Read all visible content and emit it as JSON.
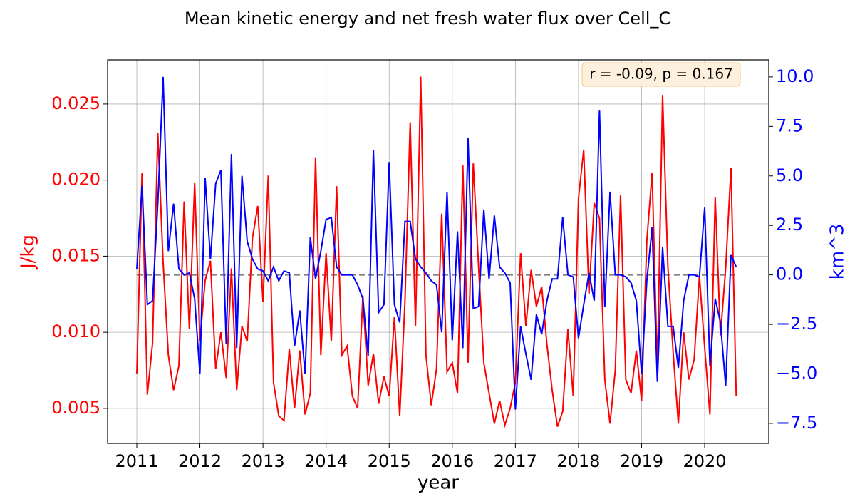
{
  "chart_data": {
    "type": "line",
    "title": "Mean kinetic energy and net fresh water flux over Cell_C",
    "xlabel": "year",
    "ylabel": "J/kg",
    "y2label": "km^3",
    "annotation": "r = -0.09, p = 0.167",
    "x": [
      2011,
      2011.083,
      2011.167,
      2011.25,
      2011.333,
      2011.417,
      2011.5,
      2011.583,
      2011.667,
      2011.75,
      2011.833,
      2011.917,
      2012,
      2012.083,
      2012.167,
      2012.25,
      2012.333,
      2012.417,
      2012.5,
      2012.583,
      2012.667,
      2012.75,
      2012.833,
      2012.917,
      2013,
      2013.083,
      2013.167,
      2013.25,
      2013.333,
      2013.417,
      2013.5,
      2013.583,
      2013.667,
      2013.75,
      2013.833,
      2013.917,
      2014,
      2014.083,
      2014.167,
      2014.25,
      2014.333,
      2014.417,
      2014.5,
      2014.583,
      2014.667,
      2014.75,
      2014.833,
      2014.917,
      2015,
      2015.083,
      2015.167,
      2015.25,
      2015.333,
      2015.417,
      2015.5,
      2015.583,
      2015.667,
      2015.75,
      2015.833,
      2015.917,
      2016,
      2016.083,
      2016.167,
      2016.25,
      2016.333,
      2016.417,
      2016.5,
      2016.583,
      2016.667,
      2016.75,
      2016.833,
      2016.917,
      2017,
      2017.083,
      2017.167,
      2017.25,
      2017.333,
      2017.417,
      2017.5,
      2017.583,
      2017.667,
      2017.75,
      2017.833,
      2017.917,
      2018,
      2018.083,
      2018.167,
      2018.25,
      2018.333,
      2018.417,
      2018.5,
      2018.583,
      2018.667,
      2018.75,
      2018.833,
      2018.917,
      2019,
      2019.083,
      2019.167,
      2019.25,
      2019.333,
      2019.417,
      2019.5,
      2019.583,
      2019.667,
      2019.75,
      2019.833,
      2019.917,
      2020,
      2020.083,
      2020.167,
      2020.25,
      2020.333,
      2020.417,
      2020.5
    ],
    "series": [
      {
        "color": "#ff0000",
        "axis": "y",
        "values": [
          0.0073,
          0.0205,
          0.0059,
          0.0093,
          0.0231,
          0.0146,
          0.0085,
          0.0062,
          0.0078,
          0.0186,
          0.0102,
          0.0198,
          0.0094,
          0.0134,
          0.0147,
          0.0076,
          0.01,
          0.007,
          0.0142,
          0.0062,
          0.0104,
          0.0094,
          0.0162,
          0.0183,
          0.012,
          0.0203,
          0.0067,
          0.0045,
          0.0042,
          0.0089,
          0.005,
          0.0088,
          0.0046,
          0.006,
          0.0215,
          0.0085,
          0.0152,
          0.0094,
          0.0196,
          0.0085,
          0.0091,
          0.0058,
          0.005,
          0.0124,
          0.0065,
          0.0086,
          0.0053,
          0.0071,
          0.0058,
          0.011,
          0.0045,
          0.012,
          0.0238,
          0.0104,
          0.0268,
          0.0085,
          0.0052,
          0.0076,
          0.0178,
          0.0074,
          0.008,
          0.006,
          0.021,
          0.008,
          0.0211,
          0.0143,
          0.008,
          0.006,
          0.004,
          0.0055,
          0.0039,
          0.005,
          0.0067,
          0.0152,
          0.0104,
          0.0141,
          0.0117,
          0.013,
          0.0092,
          0.0062,
          0.0038,
          0.0048,
          0.0102,
          0.0058,
          0.0188,
          0.022,
          0.0125,
          0.0185,
          0.0175,
          0.0069,
          0.004,
          0.0075,
          0.019,
          0.0069,
          0.006,
          0.0088,
          0.0055,
          0.016,
          0.0205,
          0.0075,
          0.0256,
          0.0143,
          0.0087,
          0.004,
          0.01,
          0.0069,
          0.0082,
          0.0137,
          0.009,
          0.0046,
          0.0189,
          0.0098,
          0.0142,
          0.0208,
          0.0058
        ]
      },
      {
        "color": "#0000ff",
        "axis": "y2",
        "values": [
          0.3,
          4.5,
          -1.5,
          -1.3,
          3.6,
          10.0,
          1.2,
          3.6,
          0.3,
          0,
          0.1,
          -1.2,
          -5,
          4.9,
          0.8,
          4.6,
          5.3,
          -3.5,
          6.1,
          -3.7,
          5,
          1.7,
          0.8,
          0.3,
          0.2,
          -0.3,
          0.4,
          -0.3,
          0.2,
          0.1,
          -3.6,
          -1.8,
          -5,
          1.9,
          -0.2,
          1.2,
          2.8,
          2.9,
          0.4,
          0,
          0,
          0,
          -0.5,
          -1.2,
          -4.1,
          6.3,
          -1.9,
          -1.5,
          5.7,
          -1.5,
          -2.4,
          2.7,
          2.7,
          0.8,
          0.4,
          0.1,
          -0.3,
          -0.5,
          -2.9,
          4.2,
          -3.3,
          2.2,
          -3.7,
          6.9,
          -1.7,
          -1.6,
          3.3,
          -0.2,
          3,
          0.4,
          0.1,
          -0.4,
          -6.8,
          -2.6,
          -4,
          -5.3,
          -2.0,
          -3,
          -1.3,
          -0.2,
          -0.2,
          2.9,
          0,
          -0.1,
          -3.2,
          -1.5,
          0.1,
          -1.3,
          8.3,
          -1.6,
          4.2,
          0,
          0,
          -0.1,
          -0.4,
          -1.3,
          -5.0,
          -0.3,
          2.4,
          -5.4,
          1.4,
          -2.6,
          -2.6,
          -4.7,
          -1.3,
          0,
          0,
          -0.1,
          3.4,
          -4.6,
          -1.2,
          -2.4,
          -5.6,
          1.0,
          0.4
        ]
      }
    ],
    "reference_line": {
      "value": 0,
      "axis": "y2",
      "color": "#808080",
      "dashed": true
    },
    "xlim": [
      2010.537,
      2021.016
    ],
    "xticks": [
      2011,
      2012,
      2013,
      2014,
      2015,
      2016,
      2017,
      2018,
      2019,
      2020
    ],
    "ylim": [
      0.0027,
      0.0279
    ],
    "yticks": [
      0.005,
      {
        "value": 0.01,
        "label": "0.010"
      },
      0.015,
      {
        "value": 0.02,
        "label": "0.020"
      },
      0.025
    ],
    "y2lim": [
      -8.51,
      10.86
    ],
    "y2ticks": [
      {
        "value": -7.5,
        "label": "−7.5"
      },
      {
        "value": -5,
        "label": "−5.0"
      },
      {
        "value": -2.5,
        "label": "−2.5"
      },
      {
        "value": 0,
        "label": "0.0"
      },
      2.5,
      {
        "value": 5,
        "label": "5.0"
      },
      7.5,
      {
        "value": 10,
        "label": "10.0"
      }
    ],
    "grid": true
  }
}
